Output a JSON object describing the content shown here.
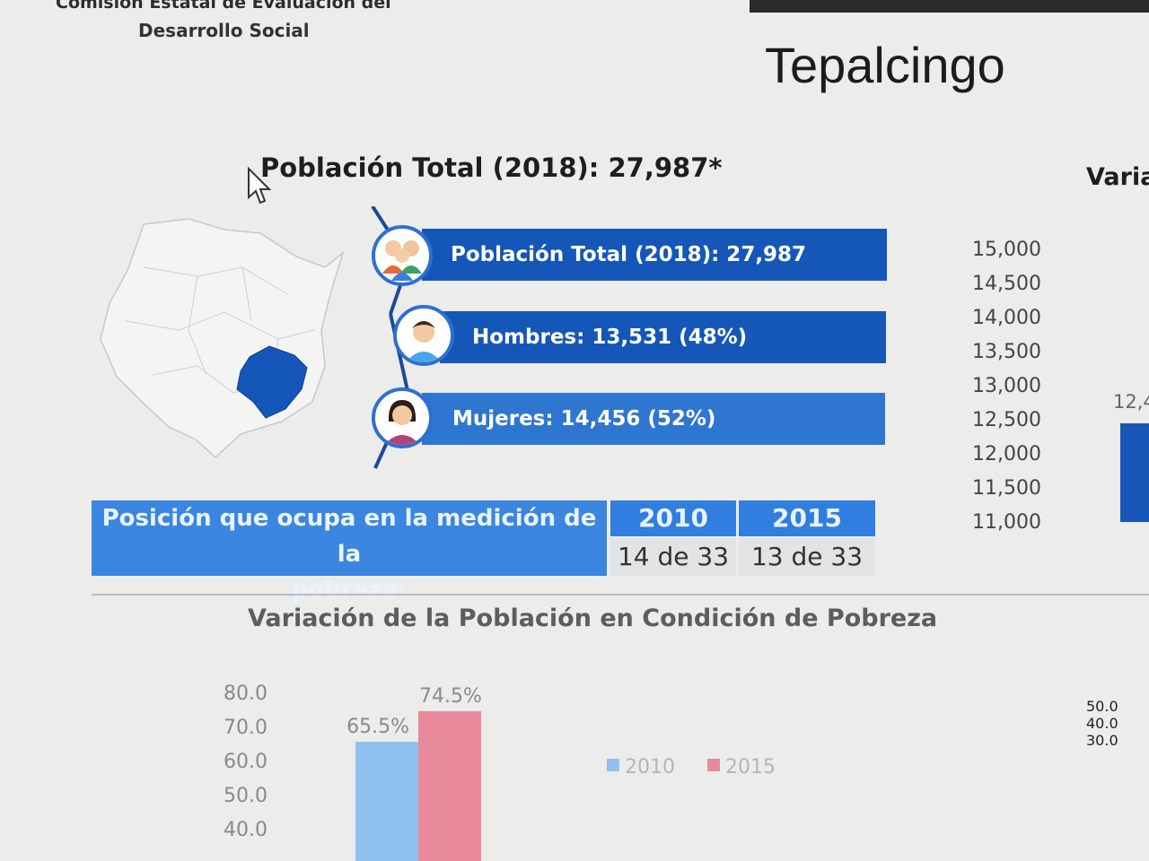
{
  "header": {
    "org_line1": "Comisión Estatal de Evaluación del",
    "org_line2": "Desarrollo Social",
    "title": "Tepalcingo"
  },
  "summary": {
    "subtitle": "Población Total (2018): 27,987*",
    "right_cut_title": "Varia"
  },
  "stats": {
    "total": "Población Total (2018): 27,987",
    "men": "Hombres: 13,531 (48%)",
    "women": "Mujeres: 14,456 (52%)"
  },
  "ranking": {
    "label_line1": "Posición que ocupa en la medición de la",
    "label_line2": "pobreza:",
    "years": [
      "2010",
      "2015"
    ],
    "values": [
      "14 de 33",
      "13 de 33"
    ]
  },
  "right_axis": {
    "ticks": [
      "15,000",
      "14,500",
      "14,000",
      "13,500",
      "13,000",
      "12,500",
      "12,000",
      "11,500",
      "11,000"
    ],
    "partial_label": "12,4",
    "lower_ticks": [
      "50.0",
      "40.0",
      "30.0"
    ]
  },
  "chart_data": {
    "type": "bar",
    "title": "Variación de la Población en Condición de Pobreza",
    "categories": [
      "2010",
      "2015"
    ],
    "values": [
      65.5,
      74.5
    ],
    "value_labels": [
      "65.5%",
      "74.5%"
    ],
    "y_ticks": [
      "80.0",
      "70.0",
      "60.0",
      "50.0",
      "40.0"
    ],
    "ylim": [
      40,
      80
    ],
    "legend": [
      "2010",
      "2015"
    ],
    "colors": [
      "#8fc0ee",
      "#e98a9a"
    ]
  },
  "colors": {
    "bar_dark": "#1557b8",
    "bar_light": "#3a86e0",
    "map_highlight": "#1557b8"
  }
}
